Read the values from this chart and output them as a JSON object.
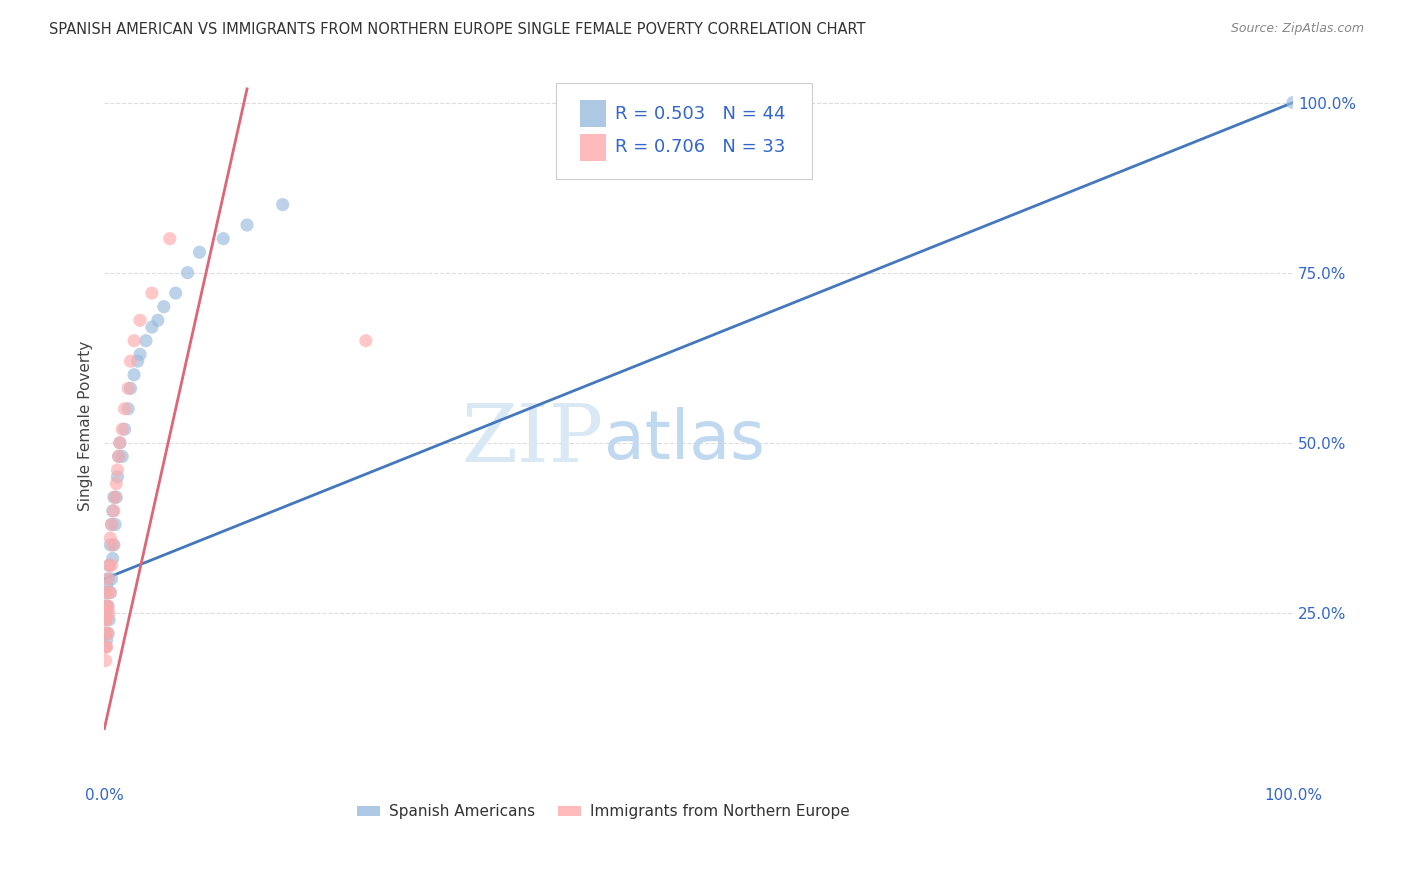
{
  "title": "SPANISH AMERICAN VS IMMIGRANTS FROM NORTHERN EUROPE SINGLE FEMALE POVERTY CORRELATION CHART",
  "source": "Source: ZipAtlas.com",
  "ylabel": "Single Female Poverty",
  "legend_label1": "Spanish Americans",
  "legend_label2": "Immigrants from Northern Europe",
  "R1": 0.503,
  "N1": 44,
  "R2": 0.706,
  "N2": 33,
  "color_blue": "#99BBDD",
  "color_pink": "#FFAAAA",
  "color_blue_line": "#4477BB",
  "color_pink_line": "#DD6677",
  "color_blue_text": "#3366CC",
  "watermark_zip_color": "#D8E8F5",
  "watermark_atlas_color": "#C0D8F0",
  "background_color": "#FFFFFF",
  "grid_color": "#DDDDDD",
  "xlim": [
    0.0,
    1.0
  ],
  "ylim": [
    0.0,
    1.05
  ],
  "blue_line_x0": 0.0,
  "blue_line_y0": 0.3,
  "blue_line_x1": 1.0,
  "blue_line_y1": 1.0,
  "pink_line_x0": 0.0,
  "pink_line_y0": 0.08,
  "pink_line_x1": 0.12,
  "pink_line_y1": 1.02,
  "sa_x": [
    0.001,
    0.001,
    0.001,
    0.001,
    0.001,
    0.002,
    0.002,
    0.002,
    0.003,
    0.003,
    0.003,
    0.004,
    0.004,
    0.005,
    0.005,
    0.006,
    0.006,
    0.007,
    0.007,
    0.008,
    0.008,
    0.009,
    0.01,
    0.011,
    0.012,
    0.013,
    0.015,
    0.017,
    0.02,
    0.022,
    0.025,
    0.028,
    0.03,
    0.035,
    0.04,
    0.045,
    0.05,
    0.06,
    0.07,
    0.08,
    0.1,
    0.12,
    0.15,
    1.0
  ],
  "sa_y": [
    0.2,
    0.22,
    0.24,
    0.26,
    0.28,
    0.21,
    0.25,
    0.29,
    0.22,
    0.26,
    0.3,
    0.24,
    0.32,
    0.28,
    0.35,
    0.3,
    0.38,
    0.33,
    0.4,
    0.35,
    0.42,
    0.38,
    0.42,
    0.45,
    0.48,
    0.5,
    0.48,
    0.52,
    0.55,
    0.58,
    0.6,
    0.62,
    0.63,
    0.65,
    0.67,
    0.68,
    0.7,
    0.72,
    0.75,
    0.78,
    0.8,
    0.82,
    0.85,
    1.0
  ],
  "ne_x": [
    0.001,
    0.001,
    0.001,
    0.001,
    0.001,
    0.002,
    0.002,
    0.002,
    0.003,
    0.003,
    0.003,
    0.004,
    0.004,
    0.005,
    0.005,
    0.006,
    0.006,
    0.007,
    0.008,
    0.009,
    0.01,
    0.011,
    0.012,
    0.013,
    0.015,
    0.017,
    0.02,
    0.022,
    0.025,
    0.03,
    0.04,
    0.055,
    0.22
  ],
  "ne_y": [
    0.18,
    0.2,
    0.22,
    0.24,
    0.26,
    0.2,
    0.24,
    0.28,
    0.22,
    0.26,
    0.3,
    0.25,
    0.32,
    0.28,
    0.36,
    0.32,
    0.38,
    0.35,
    0.4,
    0.42,
    0.44,
    0.46,
    0.48,
    0.5,
    0.52,
    0.55,
    0.58,
    0.62,
    0.65,
    0.68,
    0.72,
    0.8,
    0.65
  ]
}
